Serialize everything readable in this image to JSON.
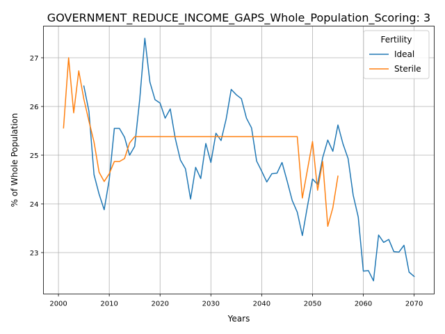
{
  "chart_data": {
    "type": "line",
    "title": "GOVERNMENT_REDUCE_INCOME_GAPS_Whole_Population_Scoring: 3",
    "xlabel": "Years",
    "ylabel": "% of Whole Population",
    "xlim": [
      1997.05,
      2073.95
    ],
    "ylim": [
      22.15,
      27.65
    ],
    "xticks": [
      2000,
      2010,
      2020,
      2030,
      2040,
      2050,
      2060,
      2070
    ],
    "yticks": [
      23,
      24,
      25,
      26,
      27
    ],
    "grid": true,
    "legend": {
      "title": "Fertility",
      "position": "top-right"
    },
    "series": [
      {
        "name": "Ideal",
        "color": "#1f77b4",
        "x": [
          2005,
          2006,
          2007,
          2008,
          2009,
          2010,
          2011,
          2012,
          2013,
          2014,
          2015,
          2016,
          2017,
          2018,
          2019,
          2020,
          2021,
          2022,
          2023,
          2024,
          2025,
          2026,
          2027,
          2028,
          2029,
          2030,
          2031,
          2032,
          2033,
          2034,
          2035,
          2036,
          2037,
          2038,
          2039,
          2040,
          2041,
          2042,
          2043,
          2044,
          2045,
          2046,
          2047,
          2048,
          2049,
          2050,
          2051,
          2052,
          2053,
          2054,
          2055,
          2056,
          2057,
          2058,
          2059,
          2060,
          2061,
          2062,
          2063,
          2064,
          2065,
          2066,
          2067,
          2068,
          2069,
          2070
        ],
        "y": [
          26.42,
          25.9,
          24.6,
          24.2,
          23.88,
          24.5,
          25.55,
          25.55,
          25.37,
          25.0,
          25.18,
          26.15,
          27.4,
          26.5,
          26.14,
          26.07,
          25.76,
          25.95,
          25.34,
          24.9,
          24.72,
          24.1,
          24.75,
          24.52,
          25.24,
          24.85,
          25.45,
          25.3,
          25.74,
          26.35,
          26.24,
          26.16,
          25.76,
          25.56,
          24.88,
          24.67,
          24.45,
          24.62,
          24.63,
          24.85,
          24.47,
          24.07,
          23.83,
          23.35,
          23.95,
          24.51,
          24.4,
          24.95,
          25.31,
          25.08,
          25.62,
          25.23,
          24.93,
          24.18,
          23.73,
          22.62,
          22.63,
          22.42,
          23.36,
          23.21,
          23.27,
          23.02,
          23.01,
          23.15,
          22.6,
          22.51
        ]
      },
      {
        "name": "Sterile",
        "color": "#ff7f0e",
        "x": [
          2001,
          2002,
          2003,
          2004,
          2005,
          2006,
          2007,
          2008,
          2009,
          2010,
          2011,
          2012,
          2013,
          2014,
          2015,
          2016,
          2017,
          2018,
          2019,
          2020,
          2021,
          2022,
          2023,
          2024,
          2025,
          2026,
          2027,
          2028,
          2029,
          2030,
          2031,
          2032,
          2033,
          2034,
          2035,
          2036,
          2037,
          2038,
          2039,
          2040,
          2041,
          2042,
          2043,
          2044,
          2045,
          2046,
          2047,
          2048,
          2049,
          2050,
          2051,
          2052,
          2053,
          2054,
          2055
        ],
        "y": [
          25.56,
          27.0,
          25.87,
          26.73,
          26.15,
          25.7,
          25.27,
          24.65,
          24.46,
          24.62,
          24.87,
          24.87,
          24.93,
          25.25,
          25.38,
          25.38,
          25.38,
          25.38,
          25.38,
          25.38,
          25.38,
          25.38,
          25.38,
          25.38,
          25.38,
          25.38,
          25.38,
          25.38,
          25.38,
          25.38,
          25.38,
          25.38,
          25.38,
          25.38,
          25.38,
          25.38,
          25.38,
          25.38,
          25.38,
          25.38,
          25.38,
          25.38,
          25.38,
          25.38,
          25.38,
          25.38,
          25.38,
          24.12,
          24.7,
          25.28,
          24.28,
          24.87,
          23.54,
          23.92,
          24.57
        ]
      }
    ]
  }
}
